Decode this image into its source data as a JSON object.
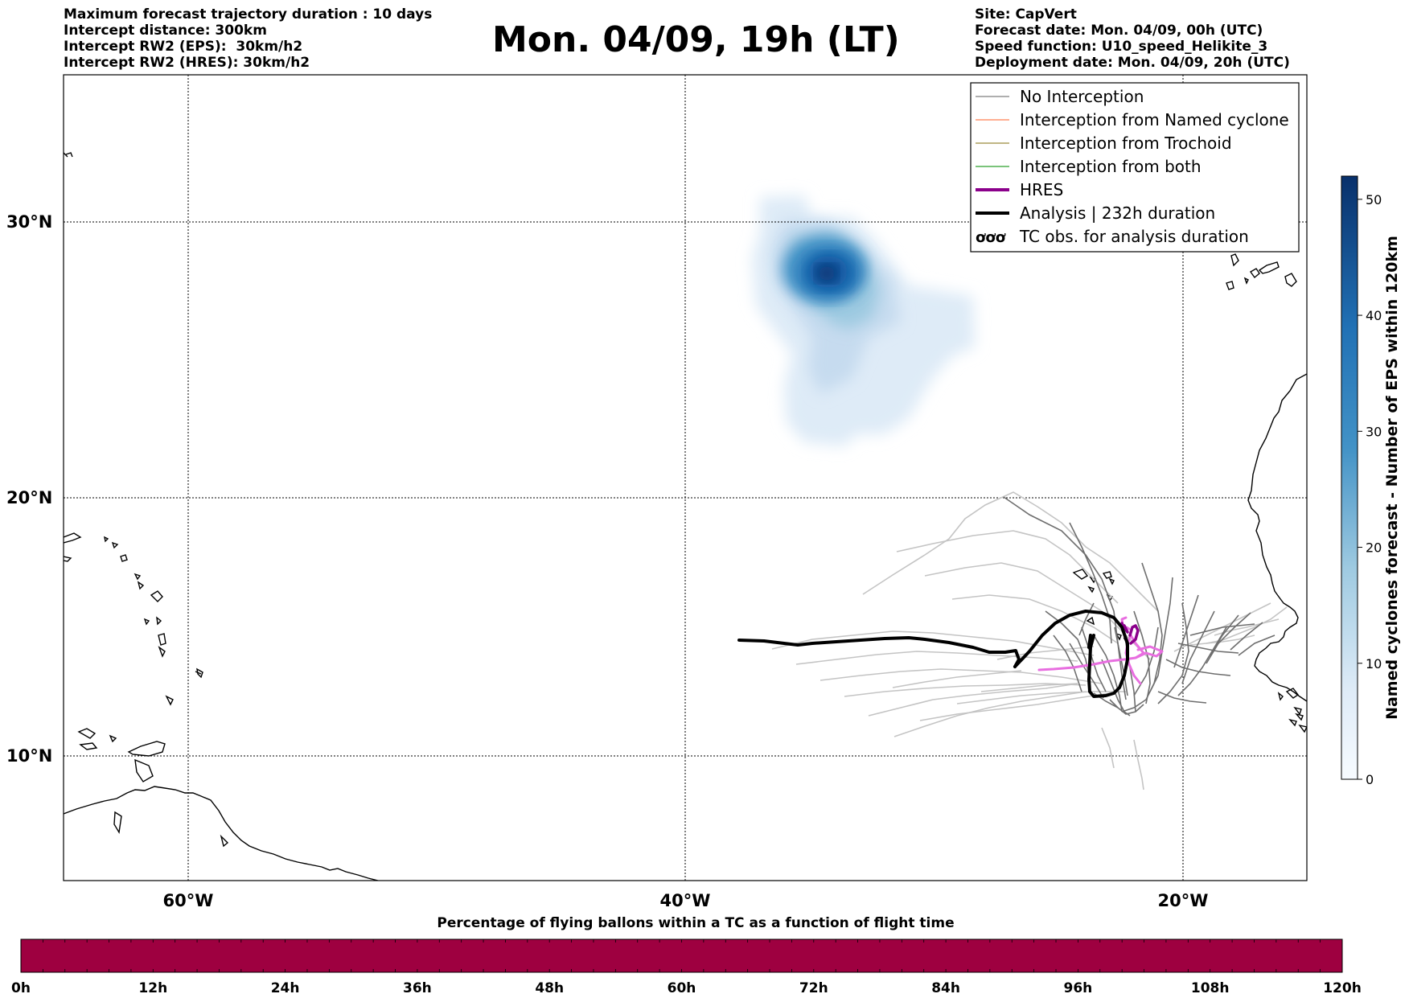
{
  "header": {
    "left_lines": [
      "Maximum forecast trajectory duration : 10 days",
      "Intercept distance: 300km",
      "Intercept RW2 (EPS):  30km/h2",
      "Intercept RW2 (HRES): 30km/h2"
    ],
    "title": "Mon. 04/09, 19h (LT)",
    "right_lines": [
      "Site: CapVert",
      "Forecast date: Mon. 04/09, 00h (UTC)",
      "Speed function: U10_speed_Helikite_3",
      "Deployment date: Mon. 04/09, 20h (UTC)"
    ]
  },
  "map": {
    "lat_labels": [
      "30°N",
      "20°N",
      "10°N"
    ],
    "lon_labels": [
      "60°W",
      "40°W",
      "20°W"
    ],
    "legend": [
      {
        "label": "No Interception",
        "color": "#7f7f7f",
        "width": 1.2
      },
      {
        "label": "Interception from Named cyclone",
        "color": "#ff7f50",
        "width": 1.2
      },
      {
        "label": "Interception from Trochoid",
        "color": "#9a8a3a",
        "width": 1.2
      },
      {
        "label": "Interception from both",
        "color": "#2ca02c",
        "width": 1.2
      },
      {
        "label": "HRES",
        "color": "#8b008b",
        "width": 4
      },
      {
        "label": "Analysis | 232h duration",
        "color": "#000000",
        "width": 4
      },
      {
        "label": "TC obs. for analysis duration",
        "color": "#000000",
        "width": 0,
        "symbol": "ơơơ"
      }
    ],
    "colors": {
      "analysis": "#000000",
      "hres_dark": "#8b008b",
      "hres_light": "#e86ee0",
      "no_intercept_dark": "#6e6e6e",
      "no_intercept_light": "#c4c4c4",
      "density_dark": "#08306b",
      "density_light": "#deebf7"
    }
  },
  "colorbar": {
    "label": "Named cyclones forecast - Number of EPS within 120km",
    "ticks": [
      "0",
      "10",
      "20",
      "30",
      "40",
      "50"
    ],
    "range": [
      0,
      52
    ]
  },
  "bottom_bar": {
    "title": "Percentage of flying ballons within a TC as a function of flight time",
    "ticks": [
      "0h",
      "12h",
      "24h",
      "36h",
      "48h",
      "60h",
      "72h",
      "84h",
      "96h",
      "108h",
      "120h"
    ],
    "color": "#9e0040"
  }
}
